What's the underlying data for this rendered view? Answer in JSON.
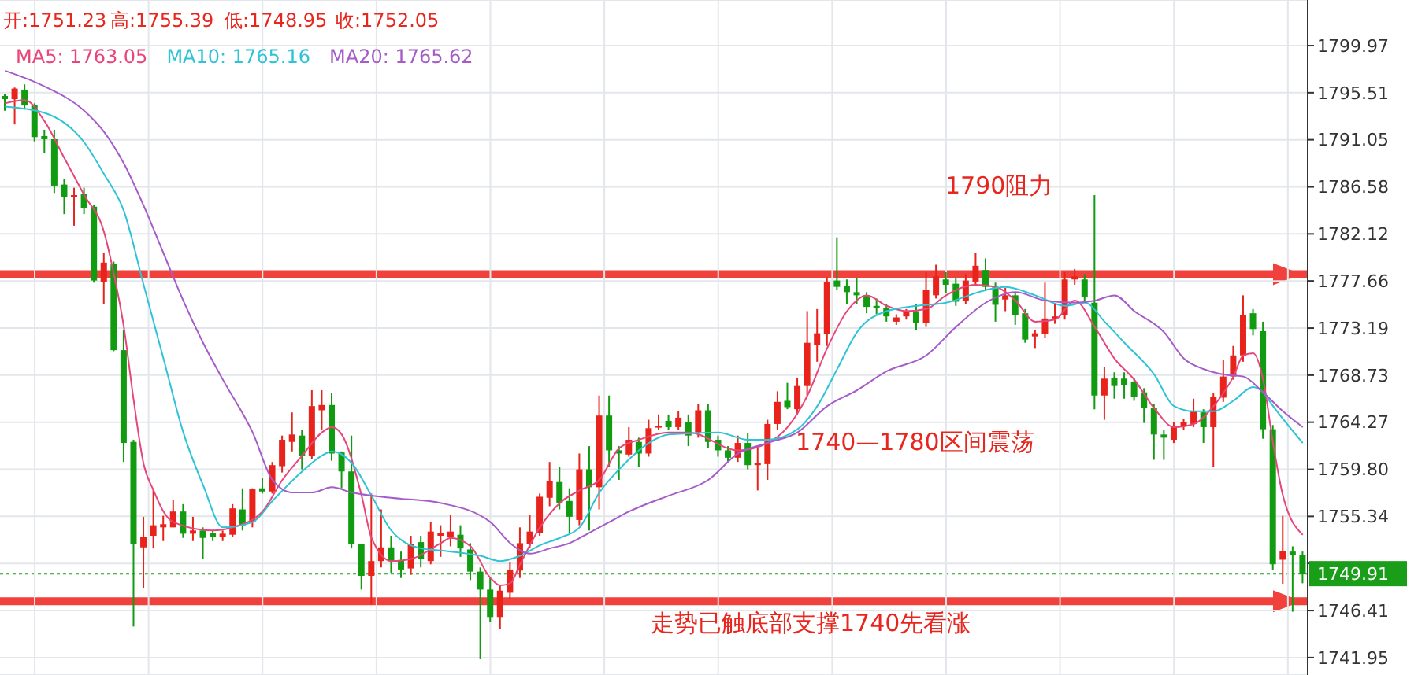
{
  "chart_data": {
    "type": "candlestick",
    "categories": [
      null,
      null,
      null,
      null,
      null,
      null,
      null,
      null,
      null,
      null,
      null,
      null,
      null,
      null,
      null,
      null,
      null,
      null,
      null,
      null,
      null,
      null,
      null,
      null,
      null,
      null,
      null,
      null,
      null,
      null,
      null,
      null,
      null,
      null,
      null,
      null,
      null,
      null,
      null,
      null,
      null,
      null,
      null,
      null,
      null,
      null,
      null,
      null,
      null,
      null,
      null,
      null,
      null,
      null,
      null,
      null,
      null,
      null,
      null,
      null,
      null,
      null,
      null,
      null,
      null,
      null,
      null,
      null,
      null,
      null,
      null,
      null,
      null,
      null,
      null,
      null,
      null,
      null,
      null,
      null,
      null,
      null,
      null,
      null,
      null,
      null,
      null,
      null,
      null,
      null,
      null,
      null,
      null,
      null,
      null,
      null,
      null,
      null,
      null,
      null,
      null,
      null,
      null,
      null,
      null,
      null,
      null,
      null,
      null,
      null,
      null,
      null,
      null,
      null,
      null,
      null,
      null,
      null,
      null,
      null,
      null,
      null,
      null,
      null,
      null,
      null,
      null,
      null,
      null,
      null,
      null,
      null
    ],
    "ohlc": [
      [
        1795.2,
        1795.4,
        1793.8,
        1794.9
      ],
      [
        1794.9,
        1796.0,
        1792.5,
        1795.9
      ],
      [
        1795.8,
        1796.3,
        1794.0,
        1794.3
      ],
      [
        1794.3,
        1794.5,
        1790.9,
        1791.3
      ],
      [
        1791.4,
        1792.0,
        1789.8,
        1791.1
      ],
      [
        1791.1,
        1792.0,
        1786.0,
        1786.7
      ],
      [
        1786.8,
        1787.3,
        1784.0,
        1785.6
      ],
      [
        1785.6,
        1786.5,
        1782.9,
        1785.8
      ],
      [
        1785.9,
        1786.5,
        1784.0,
        1784.6
      ],
      [
        1784.7,
        1784.9,
        1777.5,
        1777.7
      ],
      [
        1777.6,
        1780.3,
        1775.5,
        1779.4
      ],
      [
        1779.3,
        1779.5,
        1771.0,
        1771.1
      ],
      [
        1771.1,
        1773.0,
        1760.5,
        1762.3
      ],
      [
        1762.4,
        1762.6,
        1744.9,
        1752.7
      ],
      [
        1752.4,
        1755.3,
        1748.5,
        1753.4
      ],
      [
        1753.5,
        1758.0,
        1752.3,
        1754.5
      ],
      [
        1754.3,
        1755.4,
        1753.0,
        1754.6
      ],
      [
        1754.3,
        1756.9,
        1754.3,
        1755.8
      ],
      [
        1755.8,
        1756.5,
        1753.3,
        1753.7
      ],
      [
        1753.7,
        1755.3,
        1753.0,
        1754.0
      ],
      [
        1754.0,
        1754.3,
        1751.3,
        1753.3
      ],
      [
        1753.8,
        1754.0,
        1753.0,
        1753.4
      ],
      [
        1753.4,
        1754.0,
        1753.0,
        1753.7
      ],
      [
        1753.6,
        1756.5,
        1753.4,
        1756.1
      ],
      [
        1756.0,
        1758.0,
        1754.0,
        1754.5
      ],
      [
        1754.8,
        1758.0,
        1754.3,
        1757.9
      ],
      [
        1758.0,
        1759.0,
        1757.5,
        1757.7
      ],
      [
        1757.7,
        1760.5,
        1757.5,
        1760.2
      ],
      [
        1760.1,
        1763.0,
        1759.5,
        1762.6
      ],
      [
        1762.4,
        1765.2,
        1761.5,
        1763.1
      ],
      [
        1763.0,
        1763.5,
        1759.8,
        1761.1
      ],
      [
        1761.1,
        1767.3,
        1760.8,
        1765.8
      ],
      [
        1765.4,
        1767.3,
        1763.5,
        1765.9
      ],
      [
        1765.9,
        1767.0,
        1760.6,
        1761.3
      ],
      [
        1761.4,
        1761.5,
        1758.0,
        1759.6
      ],
      [
        1759.6,
        1763.0,
        1752.3,
        1752.7
      ],
      [
        1752.7,
        1752.7,
        1748.4,
        1749.7
      ],
      [
        1749.7,
        1757.5,
        1747.0,
        1751.1
      ],
      [
        1751.1,
        1756.0,
        1750.5,
        1752.4
      ],
      [
        1752.4,
        1753.5,
        1750.0,
        1751.1
      ],
      [
        1751.2,
        1752.0,
        1749.5,
        1750.3
      ],
      [
        1750.4,
        1753.5,
        1749.8,
        1752.7
      ],
      [
        1752.9,
        1753.5,
        1750.5,
        1751.3
      ],
      [
        1751.1,
        1754.8,
        1750.8,
        1753.9
      ],
      [
        1753.5,
        1754.5,
        1751.5,
        1753.8
      ],
      [
        1753.4,
        1755.5,
        1752.5,
        1753.9
      ],
      [
        1753.6,
        1754.5,
        1751.5,
        1752.3
      ],
      [
        1752.2,
        1752.8,
        1749.3,
        1750.1
      ],
      [
        1750.1,
        1750.5,
        1741.8,
        1748.4
      ],
      [
        1748.4,
        1749.5,
        1745.3,
        1745.8
      ],
      [
        1745.8,
        1748.8,
        1744.7,
        1748.3
      ],
      [
        1748.1,
        1751.0,
        1747.5,
        1750.3
      ],
      [
        1750.2,
        1754.3,
        1749.5,
        1752.8
      ],
      [
        1752.7,
        1755.5,
        1752.3,
        1753.9
      ],
      [
        1753.8,
        1757.5,
        1753.5,
        1757.2
      ],
      [
        1757.1,
        1760.5,
        1756.3,
        1758.7
      ],
      [
        1758.6,
        1760.0,
        1756.0,
        1756.6
      ],
      [
        1756.8,
        1758.0,
        1753.8,
        1755.3
      ],
      [
        1755.0,
        1761.3,
        1754.5,
        1759.8
      ],
      [
        1759.8,
        1762.0,
        1754.0,
        1758.1
      ],
      [
        1758.1,
        1766.8,
        1756.0,
        1764.9
      ],
      [
        1764.9,
        1766.8,
        1760.0,
        1761.6
      ],
      [
        1761.6,
        1762.0,
        1758.8,
        1761.3
      ],
      [
        1761.2,
        1763.8,
        1761.0,
        1762.6
      ],
      [
        1762.4,
        1762.8,
        1760.0,
        1761.3
      ],
      [
        1761.3,
        1764.5,
        1761.0,
        1763.7
      ],
      [
        1763.8,
        1765.0,
        1763.5,
        1763.9
      ],
      [
        1764.4,
        1765.0,
        1763.5,
        1763.8
      ],
      [
        1763.8,
        1765.3,
        1763.5,
        1764.7
      ],
      [
        1764.3,
        1765.0,
        1762.0,
        1763.0
      ],
      [
        1763.3,
        1766.0,
        1762.8,
        1765.4
      ],
      [
        1765.4,
        1766.0,
        1761.8,
        1762.4
      ],
      [
        1762.6,
        1763.0,
        1761.0,
        1761.6
      ],
      [
        1761.6,
        1762.0,
        1760.5,
        1760.9
      ],
      [
        1760.9,
        1763.0,
        1760.5,
        1762.3
      ],
      [
        1762.3,
        1763.2,
        1759.8,
        1760.2
      ],
      [
        1760.2,
        1762.0,
        1757.8,
        1760.4
      ],
      [
        1760.3,
        1764.5,
        1758.8,
        1764.1
      ],
      [
        1764.1,
        1767.2,
        1763.5,
        1766.2
      ],
      [
        1766.3,
        1768.0,
        1765.5,
        1765.7
      ],
      [
        1765.5,
        1768.5,
        1765.0,
        1767.7
      ],
      [
        1767.7,
        1774.8,
        1766.8,
        1771.8
      ],
      [
        1771.6,
        1775.0,
        1770.0,
        1772.7
      ],
      [
        1772.6,
        1778.0,
        1771.5,
        1777.6
      ],
      [
        1777.7,
        1781.8,
        1776.8,
        1777.1
      ],
      [
        1777.2,
        1777.8,
        1775.5,
        1776.6
      ],
      [
        1776.6,
        1777.9,
        1775.5,
        1776.3
      ],
      [
        1776.3,
        1776.6,
        1774.6,
        1775.2
      ],
      [
        1775.3,
        1776.0,
        1774.5,
        1775.1
      ],
      [
        1775.1,
        1775.5,
        1773.8,
        1774.3
      ],
      [
        1773.8,
        1774.5,
        1773.5,
        1774.2
      ],
      [
        1774.3,
        1775.0,
        1774.0,
        1774.7
      ],
      [
        1774.8,
        1775.5,
        1773.0,
        1773.7
      ],
      [
        1773.7,
        1778.5,
        1773.3,
        1776.8
      ],
      [
        1776.3,
        1779.2,
        1776.0,
        1778.1
      ],
      [
        1777.8,
        1778.5,
        1776.5,
        1777.3
      ],
      [
        1777.4,
        1778.0,
        1775.3,
        1775.7
      ],
      [
        1775.8,
        1778.3,
        1775.5,
        1777.7
      ],
      [
        1777.6,
        1780.3,
        1777.3,
        1779.1
      ],
      [
        1778.7,
        1779.8,
        1776.8,
        1777.1
      ],
      [
        1777.1,
        1777.5,
        1773.8,
        1775.4
      ],
      [
        1775.9,
        1777.0,
        1774.8,
        1776.3
      ],
      [
        1776.3,
        1776.5,
        1773.5,
        1774.4
      ],
      [
        1774.6,
        1775.0,
        1771.8,
        1772.1
      ],
      [
        1772.4,
        1773.0,
        1771.3,
        1772.7
      ],
      [
        1772.6,
        1777.5,
        1772.3,
        1774.1
      ],
      [
        1774.1,
        1775.5,
        1773.6,
        1774.3
      ],
      [
        1774.4,
        1778.5,
        1774.0,
        1777.8
      ],
      [
        1777.8,
        1778.8,
        1777.3,
        1778.1
      ],
      [
        1777.8,
        1778.3,
        1775.8,
        1776.1
      ],
      [
        1775.6,
        1785.8,
        1765.5,
        1766.8
      ],
      [
        1766.8,
        1769.5,
        1764.5,
        1768.4
      ],
      [
        1768.5,
        1769.0,
        1766.5,
        1767.7
      ],
      [
        1768.4,
        1769.0,
        1766.5,
        1767.8
      ],
      [
        1768.1,
        1768.5,
        1766.3,
        1766.7
      ],
      [
        1767.1,
        1767.5,
        1764.2,
        1765.6
      ],
      [
        1765.6,
        1766.0,
        1760.7,
        1763.1
      ],
      [
        1763.1,
        1763.5,
        1760.7,
        1762.8
      ],
      [
        1762.6,
        1764.3,
        1762.3,
        1763.9
      ],
      [
        1763.9,
        1764.6,
        1763.5,
        1764.3
      ],
      [
        1764.1,
        1766.5,
        1763.8,
        1765.3
      ],
      [
        1765.2,
        1765.5,
        1762.3,
        1763.8
      ],
      [
        1763.8,
        1767.0,
        1760.0,
        1766.7
      ],
      [
        1766.6,
        1770.2,
        1766.2,
        1768.6
      ],
      [
        1768.6,
        1771.5,
        1768.3,
        1770.6
      ],
      [
        1770.6,
        1776.3,
        1770.0,
        1774.4
      ],
      [
        1774.6,
        1775.0,
        1772.5,
        1773.1
      ],
      [
        1772.9,
        1773.8,
        1762.7,
        1763.6
      ],
      [
        1763.6,
        1764.0,
        1750.3,
        1750.8
      ],
      [
        1751.23,
        1755.39,
        1748.95,
        1752.05
      ],
      [
        1752.0,
        1752.5,
        1746.3,
        1751.7
      ],
      [
        1751.7,
        1752.0,
        1749.0,
        1749.91
      ]
    ],
    "colors": [
      "#119b11",
      "#e8231c",
      "#119b11",
      "#119b11",
      "#119b11",
      "#119b11",
      "#119b11",
      "#e8231c",
      "#119b11",
      "#119b11",
      "#e8231c",
      "#119b11",
      "#119b11",
      "#119b11",
      "#e8231c",
      "#e8231c",
      "#e8231c",
      "#e8231c",
      "#119b11",
      "#e8231c",
      "#119b11",
      "#119b11",
      "#e8231c",
      "#e8231c",
      "#119b11",
      "#e8231c",
      "#119b11",
      "#e8231c",
      "#e8231c",
      "#e8231c",
      "#119b11",
      "#e8231c",
      "#e8231c",
      "#119b11",
      "#119b11",
      "#119b11",
      "#119b11",
      "#e8231c",
      "#e8231c",
      "#119b11",
      "#119b11",
      "#e8231c",
      "#119b11",
      "#e8231c",
      "#e8231c",
      "#e8231c",
      "#119b11",
      "#119b11",
      "#119b11",
      "#119b11",
      "#e8231c",
      "#e8231c",
      "#e8231c",
      "#e8231c",
      "#e8231c",
      "#e8231c",
      "#119b11",
      "#119b11",
      "#e8231c",
      "#119b11",
      "#e8231c",
      "#119b11",
      "#119b11",
      "#e8231c",
      "#119b11",
      "#e8231c",
      "#e8231c",
      "#119b11",
      "#e8231c",
      "#119b11",
      "#e8231c",
      "#119b11",
      "#119b11",
      "#119b11",
      "#e8231c",
      "#119b11",
      "#e8231c",
      "#e8231c",
      "#e8231c",
      "#119b11",
      "#e8231c",
      "#e8231c",
      "#e8231c",
      "#e8231c",
      "#119b11",
      "#119b11",
      "#119b11",
      "#119b11",
      "#119b11",
      "#119b11",
      "#e8231c",
      "#e8231c",
      "#119b11",
      "#e8231c",
      "#e8231c",
      "#119b11",
      "#119b11",
      "#e8231c",
      "#e8231c",
      "#119b11",
      "#119b11",
      "#e8231c",
      "#119b11",
      "#119b11",
      "#e8231c",
      "#e8231c",
      "#e8231c",
      "#e8231c",
      "#e8231c",
      "#119b11",
      "#119b11",
      "#e8231c",
      "#119b11",
      "#119b11",
      "#119b11",
      "#119b11",
      "#119b11",
      "#119b11",
      "#e8231c",
      "#e8231c",
      "#e8231c",
      "#119b11",
      "#e8231c",
      "#e8231c",
      "#e8231c",
      "#e8231c",
      "#119b11",
      "#119b11",
      "#119b11",
      "#e8231c",
      "#119b11",
      "#119b11"
    ],
    "series": [
      {
        "name": "MA5: 1763.05",
        "type": "line",
        "color": "#e8457a",
        "values": [
          1794.5,
          null,
          1794.8,
          null,
          1792.8,
          null,
          1789.3,
          null,
          1785.8,
          null,
          1782.3,
          1778.3,
          1773.3,
          1766.3,
          1760.3,
          1757.8,
          1755.8,
          1754.8,
          null,
          null,
          null,
          1754.0,
          null,
          1754.3,
          null,
          null,
          1755.8,
          null,
          1758.8,
          null,
          1761.1,
          null,
          1763.3,
          1763.8,
          1763.1,
          null,
          1757.3,
          1753.3,
          null,
          1751.1,
          null,
          1751.3,
          null,
          null,
          1752.8,
          1753.3,
          null,
          1752.5,
          null,
          1749.5,
          1748.8,
          1749.0,
          1750.8,
          null,
          1754.3,
          null,
          1756.6,
          null,
          1757.8,
          null,
          1758.8,
          null,
          1761.8,
          null,
          1762.6,
          null,
          null,
          1763.3,
          null,
          1763.3,
          null,
          null,
          null,
          null,
          1761.6,
          null,
          null,
          1762.3,
          null,
          1763.8,
          null,
          1766.8,
          null,
          1771.3,
          null,
          1774.8,
          null,
          1776.3,
          null,
          1775.3,
          null,
          1774.8,
          null,
          1775.0,
          null,
          1776.3,
          null,
          null,
          1777.3,
          null,
          1777.1,
          null,
          1775.8,
          null,
          1773.8,
          null,
          1774.0,
          null,
          1775.8,
          null,
          1773.3,
          null,
          1770.3,
          null,
          1768.3,
          null,
          1765.6,
          null,
          1763.8,
          null,
          1764.1,
          null,
          1765.8,
          null,
          1768.6,
          1770.6,
          1770.8,
          1768.3,
          1762.3,
          1757.3,
          null,
          1753.6
        ]
      },
      {
        "name": "MA10: 1765.16",
        "type": "line",
        "color": "#2ec4d6",
        "values": [
          1794.2,
          null,
          null,
          null,
          1793.6,
          null,
          null,
          null,
          1790.8,
          null,
          1787.8,
          null,
          1784.3,
          null,
          1777.3,
          null,
          1770.3,
          null,
          1763.3,
          null,
          1758.3,
          null,
          1754.3,
          null,
          null,
          1754.8,
          null,
          1756.8,
          null,
          null,
          1759.6,
          null,
          1761.1,
          1761.5,
          null,
          1760.4,
          null,
          1757.3,
          null,
          1754.0,
          null,
          null,
          1752.3,
          null,
          1752.1,
          null,
          null,
          null,
          1751.6,
          null,
          1751.1,
          null,
          1751.6,
          null,
          1752.6,
          null,
          1753.3,
          null,
          1754.3,
          null,
          1757.6,
          null,
          1759.8,
          null,
          null,
          1762.3,
          null,
          1763.1,
          null,
          null,
          null,
          null,
          1763.3,
          null,
          null,
          1762.6,
          null,
          1762.6,
          null,
          null,
          1763.6,
          null,
          1765.8,
          null,
          1769.3,
          null,
          1772.8,
          null,
          null,
          1774.8,
          null,
          null,
          1775.3,
          null,
          null,
          1775.6,
          null,
          null,
          null,
          1776.8,
          null,
          1777.1,
          null,
          null,
          1776.3,
          null,
          null,
          1775.3,
          null,
          1775.6,
          null,
          1773.8,
          null,
          1771.8,
          null,
          null,
          1768.8,
          null,
          1765.8,
          null,
          1765.3,
          null,
          1765.3,
          null,
          1766.3,
          null,
          1767.6,
          1767.1,
          1765.8,
          null,
          null,
          1762.3
        ]
      },
      {
        "name": "MA20: 1765.62",
        "type": "line",
        "color": "#a55bc8",
        "values": [
          1797.6,
          null,
          null,
          null,
          1796.1,
          null,
          null,
          null,
          1793.8,
          null,
          1791.8,
          null,
          1788.8,
          null,
          1784.8,
          null,
          1780.3,
          null,
          1775.8,
          null,
          1771.8,
          null,
          1768.3,
          null,
          null,
          1763.3,
          null,
          1758.8,
          null,
          1757.6,
          null,
          1757.6,
          null,
          1758.1,
          null,
          1757.6,
          null,
          null,
          null,
          1757.1,
          null,
          null,
          null,
          null,
          1756.6,
          null,
          null,
          null,
          null,
          1754.8,
          null,
          1752.8,
          null,
          1751.8,
          null,
          1752.3,
          null,
          1752.8,
          null,
          1753.8,
          null,
          1754.8,
          null,
          1755.8,
          null,
          1756.6,
          null,
          1757.3,
          null,
          null,
          null,
          1758.8,
          null,
          null,
          1761.3,
          null,
          null,
          1762.3,
          null,
          null,
          1763.3,
          null,
          null,
          1765.8,
          null,
          null,
          1767.3,
          null,
          null,
          1769.1,
          null,
          null,
          null,
          1770.6,
          null,
          null,
          1773.3,
          null,
          null,
          1775.6,
          null,
          null,
          1776.6,
          null,
          null,
          1775.8,
          null,
          null,
          1775.6,
          null,
          1775.8,
          null,
          1776.3,
          null,
          1774.8,
          null,
          null,
          1772.8,
          null,
          1770.3,
          null,
          1769.3,
          null,
          1768.8,
          null,
          1768.6,
          null,
          1767.1,
          null,
          1765.3,
          null,
          1763.8
        ]
      }
    ],
    "legend": "top left",
    "ylim": [
      1740.3,
      1804.3
    ],
    "yticks": [
      1741.95,
      1746.41,
      {
        "value": 1750.88,
        "label": null
      },
      1755.34,
      {
        "value": 1759.8,
        "label": "1759.80"
      },
      1764.27,
      1768.73,
      1773.19,
      1777.66,
      1782.12,
      1786.58,
      1791.05,
      1795.51,
      1799.97
    ],
    "tick_labels": "y",
    "grid": true,
    "ref_lines": [
      {
        "axis": "y",
        "value": 1778.3,
        "color": "#f0413c",
        "line_style": "solid"
      },
      {
        "axis": "y",
        "value": 1747.3,
        "color": "#f0413c",
        "line_style": "solid"
      },
      {
        "axis": "y",
        "value": 1749.91,
        "label": "1749.91",
        "color": "#1a9e1a",
        "line_style": "dotted"
      }
    ],
    "annotations": [
      "开:1751.23",
      "高:1755.39",
      "低:1748.95",
      "收:1752.05",
      "1790阻力",
      "1740—1780区间震荡",
      "走势已触底部支撑1740先看涨"
    ]
  }
}
